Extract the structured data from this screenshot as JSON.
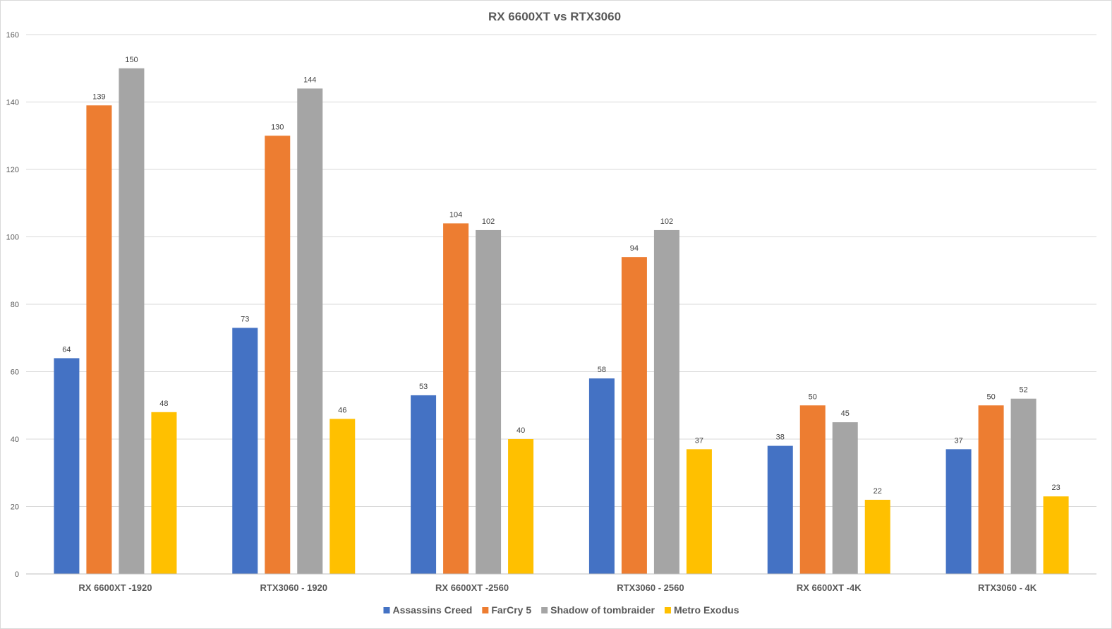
{
  "chart_data": {
    "type": "bar",
    "title": "RX 6600XT vs RTX3060",
    "categories": [
      "RX 6600XT -1920",
      "RTX3060 - 1920",
      "RX 6600XT -2560",
      "RTX3060 - 2560",
      "RX 6600XT -4K",
      "RTX3060 - 4K"
    ],
    "series": [
      {
        "name": "Assassins Creed",
        "color": "#4472C4",
        "values": [
          64,
          73,
          53,
          58,
          38,
          37
        ]
      },
      {
        "name": "FarCry 5",
        "color": "#ED7D31",
        "values": [
          139,
          130,
          104,
          94,
          50,
          50
        ]
      },
      {
        "name": "Shadow of tombraider",
        "color": "#A5A5A5",
        "values": [
          150,
          144,
          102,
          102,
          45,
          52
        ]
      },
      {
        "name": "Metro Exodus",
        "color": "#FFC000",
        "values": [
          48,
          46,
          40,
          37,
          22,
          23
        ]
      }
    ],
    "ylim": [
      0,
      160
    ],
    "yticks": [
      0,
      20,
      40,
      60,
      80,
      100,
      120,
      140,
      160
    ],
    "grid": true,
    "legend_position": "bottom",
    "data_labels": true
  }
}
